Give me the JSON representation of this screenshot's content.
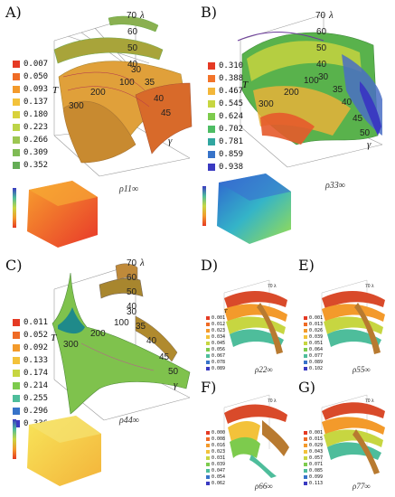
{
  "panels": [
    {
      "id": "A",
      "label": "A)",
      "legend": [
        "0.007",
        "0.050",
        "0.093",
        "0.137",
        "0.180",
        "0.223",
        "0.266",
        "0.309",
        "0.352"
      ],
      "legend_colors": [
        "#e53a24",
        "#ef6b25",
        "#f39a2b",
        "#f3c23a",
        "#d9d23b",
        "#bcd447",
        "#9cc652",
        "#7fbb55",
        "#65ad56"
      ],
      "rho": "ρ11∞",
      "axes": {
        "lambda_ticks": [
          "70",
          "60",
          "50",
          "40",
          "30"
        ],
        "T_ticks": [
          "100",
          "200",
          "300"
        ],
        "gamma_ticks": [
          "30",
          "35",
          "40",
          "45"
        ],
        "lambda": "λ",
        "T": "T",
        "gamma": "γ"
      }
    },
    {
      "id": "B",
      "label": "B)",
      "legend": [
        "0.310",
        "0.388",
        "0.467",
        "0.545",
        "0.624",
        "0.702",
        "0.781",
        "0.859",
        "0.938"
      ],
      "legend_colors": [
        "#e53a24",
        "#f3742a",
        "#f3b73a",
        "#c7d641",
        "#7dcb4d",
        "#4ebd64",
        "#31a6a0",
        "#3773c9",
        "#3a3ac1"
      ],
      "rho": "ρ33∞",
      "axes": {
        "lambda_ticks": [
          "70",
          "60",
          "50",
          "40"
        ],
        "T_ticks": [
          "100",
          "200",
          "300"
        ],
        "gamma_ticks": [
          "30",
          "35",
          "40",
          "45",
          "50"
        ],
        "lambda": "λ",
        "T": "T",
        "gamma": "γ"
      }
    },
    {
      "id": "C",
      "label": "C)",
      "legend": [
        "0.011",
        "0.052",
        "0.092",
        "0.133",
        "0.174",
        "0.214",
        "0.255",
        "0.296",
        "0.336"
      ],
      "legend_colors": [
        "#e53a24",
        "#ef6b25",
        "#f39a2b",
        "#f3c23a",
        "#c7d641",
        "#7dcb4d",
        "#4ebd9b",
        "#3773c9",
        "#3a3ac1"
      ],
      "rho": "ρ44∞",
      "axes": {
        "lambda_ticks": [
          "70",
          "60",
          "50",
          "40"
        ],
        "T_ticks": [
          "100",
          "200",
          "300"
        ],
        "gamma_ticks": [
          "30",
          "35",
          "40",
          "45",
          "50"
        ],
        "lambda": "λ",
        "T": "T",
        "gamma": "γ"
      }
    },
    {
      "id": "D",
      "label": "D)",
      "legend": [
        "0.001",
        "0.012",
        "0.023",
        "0.034",
        "0.045",
        "0.056",
        "0.067",
        "0.078",
        "0.089"
      ],
      "legend_colors": [
        "#e53a24",
        "#ef6b25",
        "#f39a2b",
        "#f3c23a",
        "#c7d641",
        "#7dcb4d",
        "#4ebd9b",
        "#3773c9",
        "#3a3ac1"
      ],
      "rho": "ρ22∞"
    },
    {
      "id": "E",
      "label": "E)",
      "legend": [
        "0.001",
        "0.013",
        "0.026",
        "0.039",
        "0.051",
        "0.064",
        "0.077",
        "0.089",
        "0.102"
      ],
      "legend_colors": [
        "#e53a24",
        "#ef6b25",
        "#f39a2b",
        "#f3c23a",
        "#c7d641",
        "#7dcb4d",
        "#4ebd9b",
        "#3773c9",
        "#3a3ac1"
      ],
      "rho": "ρ55∞"
    },
    {
      "id": "F",
      "label": "F)",
      "legend": [
        "0.000",
        "0.008",
        "0.016",
        "0.023",
        "0.031",
        "0.039",
        "0.047",
        "0.054",
        "0.062"
      ],
      "legend_colors": [
        "#e53a24",
        "#ef6b25",
        "#f39a2b",
        "#f3c23a",
        "#c7d641",
        "#7dcb4d",
        "#4ebd9b",
        "#3773c9",
        "#3a3ac1"
      ],
      "rho": "ρ66∞"
    },
    {
      "id": "G",
      "label": "G)",
      "legend": [
        "0.001",
        "0.015",
        "0.029",
        "0.043",
        "0.057",
        "0.071",
        "0.085",
        "0.099",
        "0.113"
      ],
      "legend_colors": [
        "#e53a24",
        "#ef6b25",
        "#f39a2b",
        "#f3c23a",
        "#c7d641",
        "#7dcb4d",
        "#4ebd9b",
        "#3773c9",
        "#3a3ac1"
      ],
      "rho": "ρ77∞"
    }
  ]
}
